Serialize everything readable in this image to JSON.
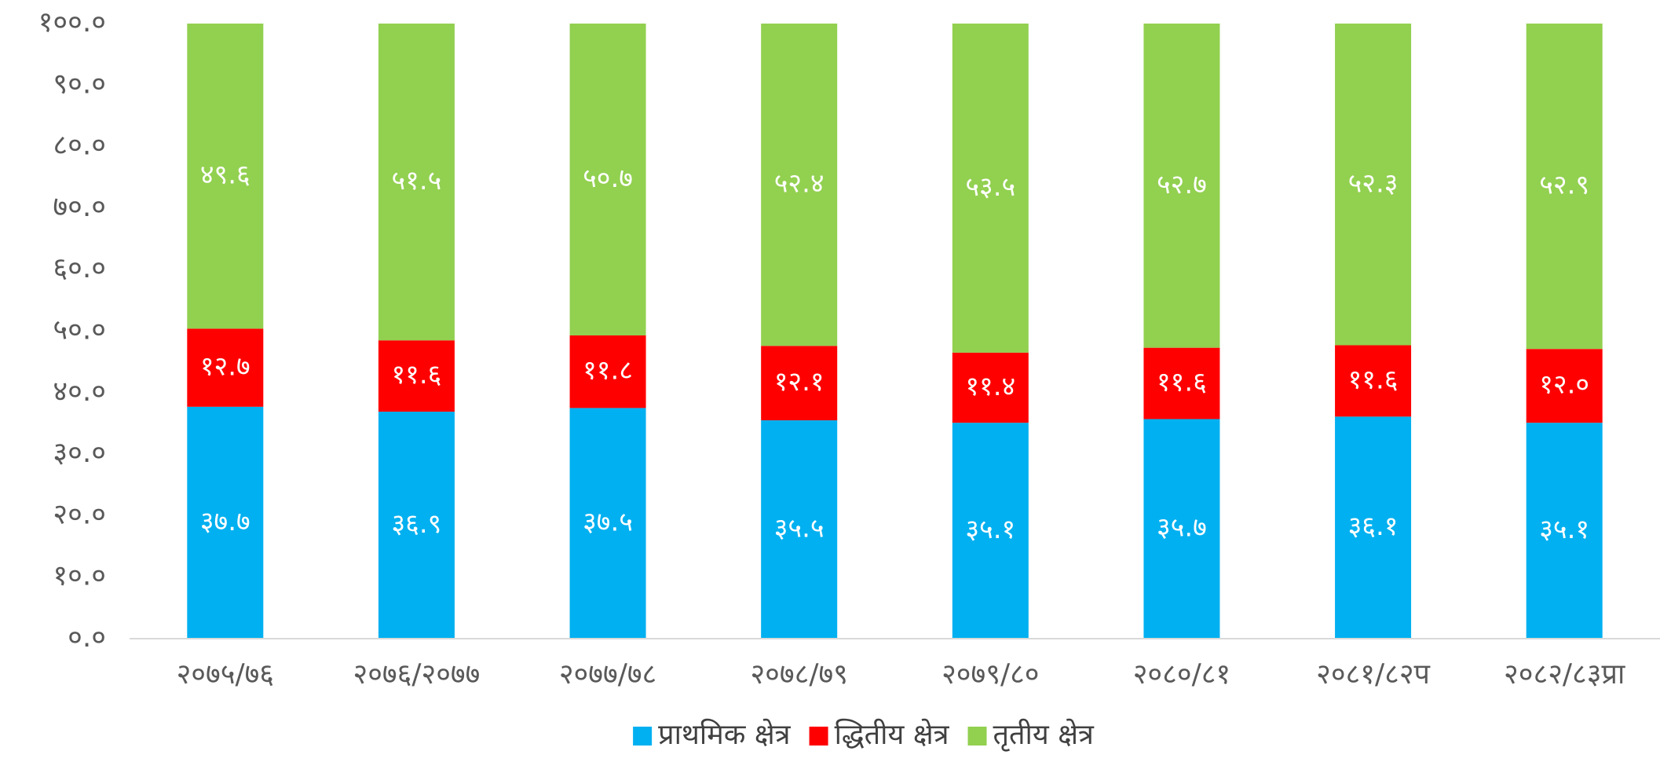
{
  "chart_data": {
    "type": "stacked_bar",
    "categories": [
      "२०७५/७६",
      "२०७६/२०७७",
      "२०७७/७८",
      "२०७८/७९",
      "२०७९/८०",
      "२०८०/८१",
      "२०८१/८२प",
      "२०८२/८३प्रा"
    ],
    "series": [
      {
        "name": "प्राथमिक क्षेत्र",
        "color": "#00b0f0",
        "values": [
          37.7,
          36.9,
          37.5,
          35.5,
          35.1,
          35.7,
          36.1,
          35.1
        ],
        "value_labels": [
          "३७.७",
          "३६.९",
          "३७.५",
          "३५.५",
          "३५.१",
          "३५.७",
          "३६.१",
          "३५.१"
        ]
      },
      {
        "name": "द्धितीय क्षेत्र",
        "color": "#ff0000",
        "values": [
          12.7,
          11.6,
          11.8,
          12.1,
          11.4,
          11.6,
          11.6,
          12.0
        ],
        "value_labels": [
          "१२.७",
          "११.६",
          "११.८",
          "१२.१",
          "११.४",
          "११.६",
          "११.६",
          "१२.०"
        ]
      },
      {
        "name": "तृतीय क्षेत्र",
        "color": "#92d050",
        "values": [
          49.6,
          51.5,
          50.7,
          52.4,
          53.5,
          52.7,
          52.3,
          52.9
        ],
        "value_labels": [
          "४९.६",
          "५१.५",
          "५०.७",
          "५२.४",
          "५३.५",
          "५२.७",
          "५२.३",
          "५२.९"
        ]
      }
    ],
    "ylim": [
      0,
      100
    ],
    "yticks": [
      {
        "value": 0,
        "label": "०.०"
      },
      {
        "value": 10,
        "label": "१०.०"
      },
      {
        "value": 20,
        "label": "२०.०"
      },
      {
        "value": 30,
        "label": "३०.०"
      },
      {
        "value": 40,
        "label": "४०.०"
      },
      {
        "value": 50,
        "label": "५०.०"
      },
      {
        "value": 60,
        "label": "६०.०"
      },
      {
        "value": 70,
        "label": "७०.०"
      },
      {
        "value": 80,
        "label": "८०.०"
      },
      {
        "value": 90,
        "label": "९०.०"
      },
      {
        "value": 100,
        "label": "१००.०"
      }
    ],
    "grid": false,
    "legend": "bottom"
  }
}
